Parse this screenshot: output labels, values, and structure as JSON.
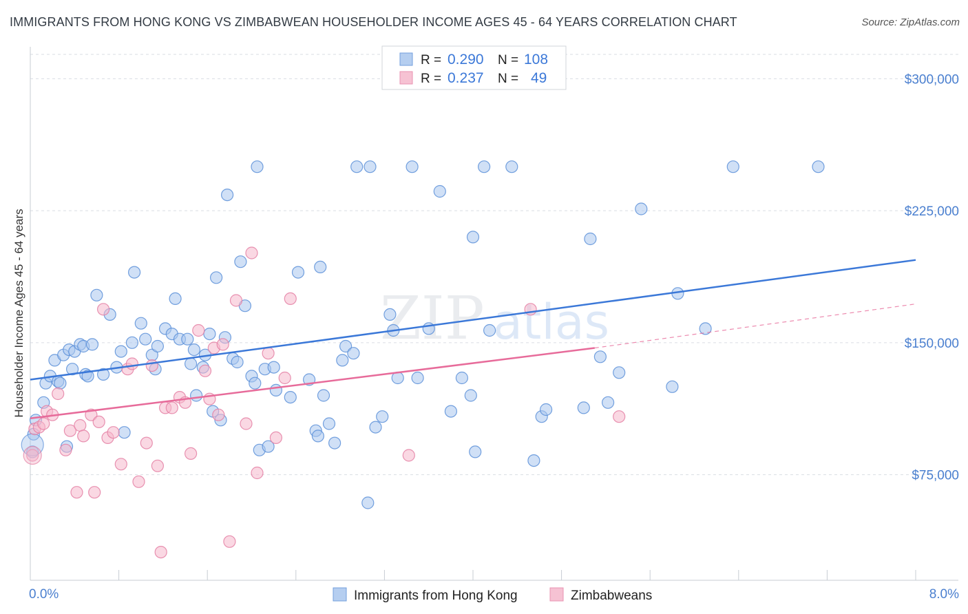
{
  "header": {
    "title": "IMMIGRANTS FROM HONG KONG VS ZIMBABWEAN HOUSEHOLDER INCOME AGES 45 - 64 YEARS CORRELATION CHART",
    "source": "Source: ZipAtlas.com"
  },
  "watermark": {
    "zip": "ZIP",
    "atlas": "atlas"
  },
  "colors": {
    "blue": "#3b78d8",
    "blue_fill": "#a9c6ee",
    "pink": "#e76b9a",
    "pink_fill": "#f5b8cc",
    "tick_text": "#4a7fcf",
    "grid": "#d9dde3"
  },
  "chart_data": {
    "type": "scatter",
    "title": "IMMIGRANTS FROM HONG KONG VS ZIMBABWEAN HOUSEHOLDER INCOME AGES 45 - 64 YEARS CORRELATION CHART",
    "xlabel": "",
    "ylabel": "Householder Income Ages 45 - 64 years",
    "xlim": [
      0,
      8
    ],
    "ylim": [
      15000,
      315000
    ],
    "x_tick_labels": [
      "0.0%",
      "8.0%"
    ],
    "y_ticks": [
      {
        "value": 75000,
        "label": "$75,000"
      },
      {
        "value": 150000,
        "label": "$150,000"
      },
      {
        "value": 225000,
        "label": "$225,000"
      },
      {
        "value": 300000,
        "label": "$300,000"
      }
    ],
    "grid": true,
    "legend_position": "top-center",
    "stats": [
      {
        "r_label": "R =",
        "r_value": "0.290",
        "n_label": "N =",
        "n_value": "108"
      },
      {
        "r_label": "R =",
        "r_value": "0.237",
        "n_label": "N =",
        "n_value": "49"
      }
    ],
    "series": [
      {
        "name": "Immigrants from Hong Kong",
        "color": "#3b78d8",
        "trend": {
          "x": [
            0,
            8
          ],
          "y": [
            129000,
            197000
          ]
        },
        "points": [
          [
            0.02,
            88000
          ],
          [
            0.03,
            98000
          ],
          [
            0.05,
            106000
          ],
          [
            0.12,
            116000
          ],
          [
            0.14,
            127000
          ],
          [
            0.18,
            131000
          ],
          [
            0.22,
            140000
          ],
          [
            0.25,
            128000
          ],
          [
            0.27,
            127000
          ],
          [
            0.3,
            143000
          ],
          [
            0.33,
            91000
          ],
          [
            0.35,
            146000
          ],
          [
            0.38,
            135000
          ],
          [
            0.4,
            145000
          ],
          [
            0.45,
            149000
          ],
          [
            0.48,
            148000
          ],
          [
            0.5,
            132000
          ],
          [
            0.52,
            131000
          ],
          [
            0.56,
            149000
          ],
          [
            0.6,
            177000
          ],
          [
            0.66,
            132000
          ],
          [
            0.72,
            166000
          ],
          [
            0.78,
            136000
          ],
          [
            0.82,
            145000
          ],
          [
            0.85,
            99000
          ],
          [
            0.92,
            150000
          ],
          [
            0.94,
            190000
          ],
          [
            1.0,
            161000
          ],
          [
            1.04,
            152000
          ],
          [
            1.1,
            143000
          ],
          [
            1.13,
            135000
          ],
          [
            1.15,
            148000
          ],
          [
            1.22,
            158000
          ],
          [
            1.28,
            155000
          ],
          [
            1.31,
            175000
          ],
          [
            1.35,
            152000
          ],
          [
            1.42,
            152000
          ],
          [
            1.45,
            138000
          ],
          [
            1.48,
            146000
          ],
          [
            1.5,
            120000
          ],
          [
            1.56,
            136000
          ],
          [
            1.58,
            143000
          ],
          [
            1.62,
            155000
          ],
          [
            1.65,
            111000
          ],
          [
            1.68,
            187000
          ],
          [
            1.72,
            106000
          ],
          [
            1.76,
            153000
          ],
          [
            1.78,
            234000
          ],
          [
            1.83,
            141000
          ],
          [
            1.87,
            139000
          ],
          [
            1.9,
            196000
          ],
          [
            1.94,
            171000
          ],
          [
            2.0,
            131000
          ],
          [
            2.03,
            127000
          ],
          [
            2.05,
            250000
          ],
          [
            2.07,
            89000
          ],
          [
            2.12,
            135000
          ],
          [
            2.15,
            91000
          ],
          [
            2.2,
            136000
          ],
          [
            2.22,
            123000
          ],
          [
            2.35,
            119000
          ],
          [
            2.42,
            190000
          ],
          [
            2.52,
            129000
          ],
          [
            2.58,
            100000
          ],
          [
            2.6,
            97000
          ],
          [
            2.62,
            193000
          ],
          [
            2.65,
            120000
          ],
          [
            2.7,
            104000
          ],
          [
            2.75,
            93000
          ],
          [
            2.82,
            140000
          ],
          [
            2.85,
            148000
          ],
          [
            2.92,
            144000
          ],
          [
            2.95,
            250000
          ],
          [
            3.05,
            59000
          ],
          [
            3.07,
            250000
          ],
          [
            3.12,
            102000
          ],
          [
            3.18,
            108000
          ],
          [
            3.25,
            166000
          ],
          [
            3.28,
            157000
          ],
          [
            3.32,
            130000
          ],
          [
            3.45,
            250000
          ],
          [
            3.5,
            130000
          ],
          [
            3.6,
            158000
          ],
          [
            3.7,
            236000
          ],
          [
            3.8,
            111000
          ],
          [
            3.9,
            130000
          ],
          [
            3.98,
            120000
          ],
          [
            4.0,
            210000
          ],
          [
            4.02,
            88000
          ],
          [
            4.1,
            250000
          ],
          [
            4.15,
            157000
          ],
          [
            4.35,
            250000
          ],
          [
            4.55,
            83000
          ],
          [
            4.62,
            108000
          ],
          [
            4.66,
            112000
          ],
          [
            5.0,
            113000
          ],
          [
            5.06,
            209000
          ],
          [
            5.15,
            142000
          ],
          [
            5.22,
            116000
          ],
          [
            5.32,
            133000
          ],
          [
            5.52,
            226000
          ],
          [
            5.8,
            125000
          ],
          [
            5.85,
            178000
          ],
          [
            6.1,
            158000
          ],
          [
            6.35,
            250000
          ],
          [
            7.12,
            250000
          ]
        ]
      },
      {
        "name": "Zimbabweans",
        "color": "#e76b9a",
        "trend": {
          "x": [
            0,
            5.1
          ],
          "y": [
            107000,
            147000
          ]
        },
        "trend_dashed": {
          "x": [
            5.1,
            8
          ],
          "y": [
            147000,
            172000
          ]
        },
        "points": [
          [
            0.02,
            86000
          ],
          [
            0.04,
            101000
          ],
          [
            0.08,
            102000
          ],
          [
            0.12,
            104000
          ],
          [
            0.15,
            111000
          ],
          [
            0.2,
            109000
          ],
          [
            0.25,
            121000
          ],
          [
            0.32,
            89000
          ],
          [
            0.36,
            100000
          ],
          [
            0.42,
            65000
          ],
          [
            0.45,
            103000
          ],
          [
            0.48,
            97000
          ],
          [
            0.55,
            109000
          ],
          [
            0.58,
            65000
          ],
          [
            0.62,
            105000
          ],
          [
            0.66,
            169000
          ],
          [
            0.7,
            96000
          ],
          [
            0.75,
            99000
          ],
          [
            0.82,
            81000
          ],
          [
            0.88,
            135000
          ],
          [
            0.92,
            138000
          ],
          [
            0.98,
            71000
          ],
          [
            1.05,
            93000
          ],
          [
            1.1,
            137000
          ],
          [
            1.15,
            80000
          ],
          [
            1.18,
            31000
          ],
          [
            1.22,
            113000
          ],
          [
            1.28,
            113000
          ],
          [
            1.35,
            119000
          ],
          [
            1.4,
            116000
          ],
          [
            1.45,
            87000
          ],
          [
            1.52,
            157000
          ],
          [
            1.58,
            134000
          ],
          [
            1.62,
            118000
          ],
          [
            1.66,
            147000
          ],
          [
            1.7,
            109000
          ],
          [
            1.74,
            149000
          ],
          [
            1.8,
            37000
          ],
          [
            1.86,
            174000
          ],
          [
            1.95,
            104000
          ],
          [
            2.0,
            201000
          ],
          [
            2.05,
            76000
          ],
          [
            2.15,
            144000
          ],
          [
            2.22,
            96000
          ],
          [
            2.3,
            130000
          ],
          [
            2.35,
            175000
          ],
          [
            3.42,
            86000
          ],
          [
            4.52,
            169000
          ],
          [
            5.32,
            108000
          ]
        ]
      }
    ]
  }
}
